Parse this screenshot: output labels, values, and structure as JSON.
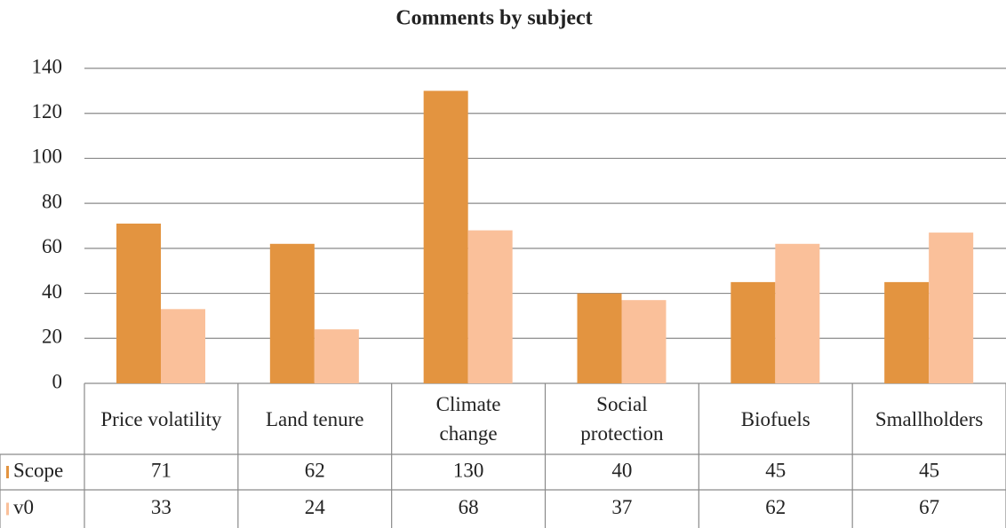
{
  "chart_data": {
    "type": "bar",
    "title": "Comments by subject",
    "categories": [
      "Price volatility",
      "Land tenure",
      "Climate change",
      "Social protection",
      "Biofuels",
      "Smallholders"
    ],
    "series": [
      {
        "name": "Scope",
        "color": "#e39440",
        "values": [
          71,
          62,
          130,
          40,
          45,
          45
        ]
      },
      {
        "name": "v0",
        "color": "#fac09a",
        "values": [
          33,
          24,
          68,
          37,
          62,
          67
        ]
      }
    ],
    "ylim": [
      0,
      140
    ],
    "yticks": [
      0,
      20,
      40,
      60,
      80,
      100,
      120,
      140
    ],
    "grid": true,
    "data_table": true
  }
}
